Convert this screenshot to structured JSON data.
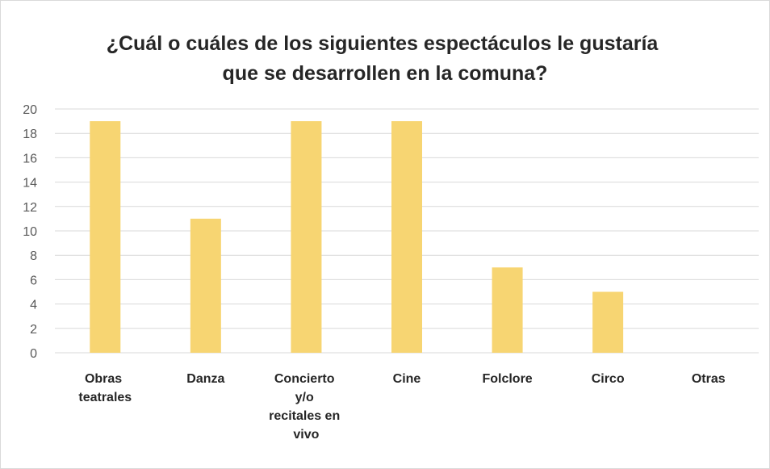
{
  "chart_data": {
    "type": "bar",
    "title": "¿Cuál o cuáles de los siguientes espectáculos le gustaría\nque se desarrollen en la comuna?",
    "categories": [
      "Obras\nteatrales",
      "Danza",
      "Concierto\ny/o\nrecitales en\nvivo",
      "Cine",
      "Folclore",
      "Circo",
      "Otras"
    ],
    "values": [
      19,
      11,
      19,
      19,
      7,
      5,
      0
    ],
    "color": "#f7d572",
    "ylim": [
      0,
      20
    ],
    "yticks": [
      0,
      2,
      4,
      6,
      8,
      10,
      12,
      14,
      16,
      18,
      20
    ],
    "grid": true
  }
}
